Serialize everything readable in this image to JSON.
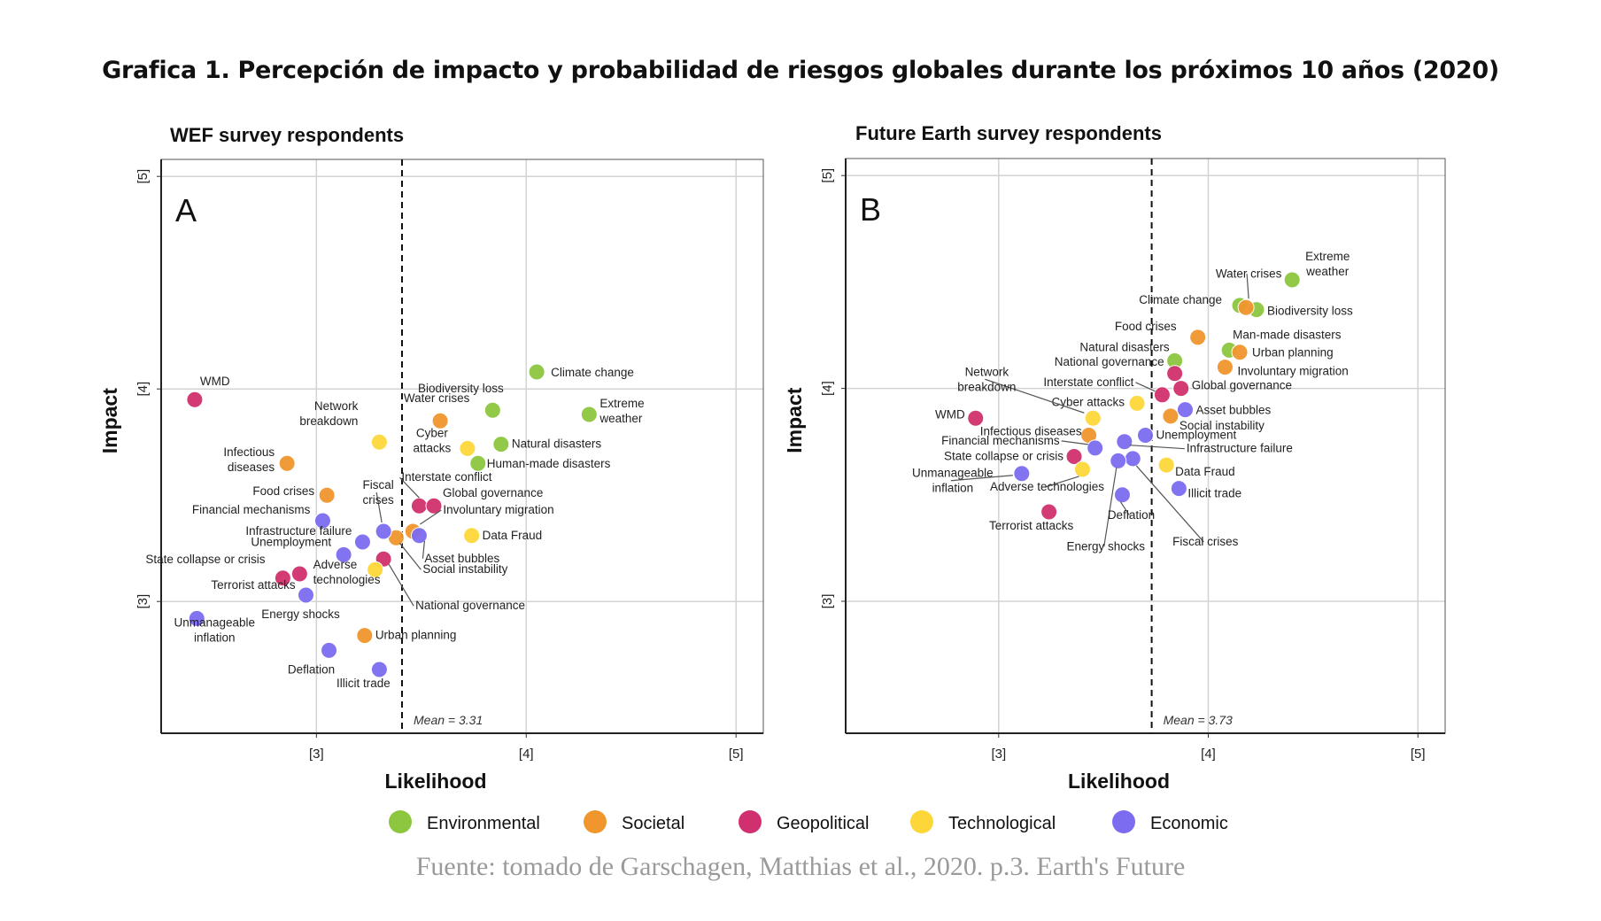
{
  "page": {
    "title": "Grafica 1. Percepción de impacto y probabilidad de riesgos globales durante los próximos 10 años  (2020)",
    "source": "Fuente: tomado de  Garschagen, Matthias et al., 2020. p.3. Earth's Future"
  },
  "categories": [
    {
      "key": "env",
      "name": "Environmental",
      "color": "#8dc63f"
    },
    {
      "key": "soc",
      "name": "Societal",
      "color": "#f0962d"
    },
    {
      "key": "geo",
      "name": "Geopolitical",
      "color": "#d0306d"
    },
    {
      "key": "tec",
      "name": "Technological",
      "color": "#fdd73a"
    },
    {
      "key": "eco",
      "name": "Economic",
      "color": "#7b6cf0"
    }
  ],
  "chart_data": [
    {
      "type": "scatter",
      "panel": "A",
      "title": "WEF survey respondents",
      "xlabel": "Likelihood",
      "ylabel": "Impact",
      "xlim": [
        2.26,
        5.13
      ],
      "ylim": [
        2.38,
        5.08
      ],
      "xticks": [
        "[3]",
        "[4]",
        "[5]"
      ],
      "yticks": [
        "[3]",
        "[4]",
        "[5]"
      ],
      "xtick_values": [
        3,
        4,
        5
      ],
      "ytick_values": [
        3,
        4,
        5
      ],
      "grid": true,
      "mean_label": "Mean = 3.31",
      "mean_x": 3.31,
      "legend_position": "bottom",
      "points": [
        {
          "name": "Climate change",
          "cat": "env",
          "x": 4.05,
          "y": 4.08
        },
        {
          "name": "Biodiversity loss",
          "cat": "env",
          "x": 3.84,
          "y": 3.9
        },
        {
          "name": "Extreme weather",
          "cat": "env",
          "x": 4.3,
          "y": 3.88
        },
        {
          "name": "Natural disasters",
          "cat": "env",
          "x": 3.88,
          "y": 3.74
        },
        {
          "name": "Human-made disasters",
          "cat": "env",
          "x": 3.77,
          "y": 3.65
        },
        {
          "name": "Water crises",
          "cat": "soc",
          "x": 3.59,
          "y": 3.85
        },
        {
          "name": "Infectious diseases",
          "cat": "soc",
          "x": 2.86,
          "y": 3.65
        },
        {
          "name": "Food crises",
          "cat": "soc",
          "x": 3.05,
          "y": 3.5
        },
        {
          "name": "Involuntary migration",
          "cat": "soc",
          "x": 3.46,
          "y": 3.33
        },
        {
          "name": "Social instability",
          "cat": "soc",
          "x": 3.38,
          "y": 3.3
        },
        {
          "name": "Urban planning",
          "cat": "soc",
          "x": 3.23,
          "y": 2.84
        },
        {
          "name": "WMD",
          "cat": "geo",
          "x": 2.42,
          "y": 3.95
        },
        {
          "name": "Interstate conflict",
          "cat": "geo",
          "x": 3.49,
          "y": 3.45
        },
        {
          "name": "Global governance",
          "cat": "geo",
          "x": 3.56,
          "y": 3.45
        },
        {
          "name": "National governance",
          "cat": "geo",
          "x": 3.32,
          "y": 3.2
        },
        {
          "name": "State collapse or crisis",
          "cat": "geo",
          "x": 2.84,
          "y": 3.11
        },
        {
          "name": "Terrorist attacks",
          "cat": "geo",
          "x": 2.92,
          "y": 3.13
        },
        {
          "name": "Network breakdown",
          "cat": "tec",
          "x": 3.3,
          "y": 3.75
        },
        {
          "name": "Cyber attacks",
          "cat": "tec",
          "x": 3.72,
          "y": 3.72
        },
        {
          "name": "Data Fraud",
          "cat": "tec",
          "x": 3.74,
          "y": 3.31
        },
        {
          "name": "Adverse technologies",
          "cat": "tec",
          "x": 3.28,
          "y": 3.15
        },
        {
          "name": "Asset bubbles",
          "cat": "eco",
          "x": 3.49,
          "y": 3.31
        },
        {
          "name": "Fiscal crises",
          "cat": "eco",
          "x": 3.32,
          "y": 3.33
        },
        {
          "name": "Financial mechanisms",
          "cat": "eco",
          "x": 3.03,
          "y": 3.38
        },
        {
          "name": "Infrastructure failure",
          "cat": "eco",
          "x": 3.22,
          "y": 3.28
        },
        {
          "name": "Unemployment",
          "cat": "eco",
          "x": 3.13,
          "y": 3.22
        },
        {
          "name": "Energy shocks",
          "cat": "eco",
          "x": 2.95,
          "y": 3.03
        },
        {
          "name": "Unmanageable inflation",
          "cat": "eco",
          "x": 2.43,
          "y": 2.92
        },
        {
          "name": "Deflation",
          "cat": "eco",
          "x": 3.06,
          "y": 2.77
        },
        {
          "name": "Illicit trade",
          "cat": "eco",
          "x": 3.3,
          "y": 2.68
        }
      ]
    },
    {
      "type": "scatter",
      "panel": "B",
      "title": "Future Earth survey respondents",
      "xlabel": "Likelihood",
      "ylabel": "Impact",
      "xlim": [
        2.27,
        5.13
      ],
      "ylim": [
        2.38,
        5.08
      ],
      "xticks": [
        "[3]",
        "[4]",
        "[5]"
      ],
      "yticks": [
        "[3]",
        "[4]",
        "[5]"
      ],
      "xtick_values": [
        3,
        4,
        5
      ],
      "ytick_values": [
        3,
        4,
        5
      ],
      "grid": true,
      "mean_label": "Mean = 3.73",
      "mean_x": 3.73,
      "legend_position": "bottom",
      "points": [
        {
          "name": "Extreme weather",
          "cat": "env",
          "x": 4.4,
          "y": 4.51
        },
        {
          "name": "Climate change",
          "cat": "env",
          "x": 4.15,
          "y": 4.39
        },
        {
          "name": "Biodiversity loss",
          "cat": "env",
          "x": 4.23,
          "y": 4.37
        },
        {
          "name": "Man-made disasters",
          "cat": "env",
          "x": 4.1,
          "y": 4.18
        },
        {
          "name": "Natural disasters",
          "cat": "env",
          "x": 3.84,
          "y": 4.13
        },
        {
          "name": "Water crises",
          "cat": "soc",
          "x": 4.18,
          "y": 4.38
        },
        {
          "name": "Food crises",
          "cat": "soc",
          "x": 3.95,
          "y": 4.24
        },
        {
          "name": "Urban planning",
          "cat": "soc",
          "x": 4.15,
          "y": 4.17
        },
        {
          "name": "Involuntary migration",
          "cat": "soc",
          "x": 4.08,
          "y": 4.1
        },
        {
          "name": "Social instability",
          "cat": "soc",
          "x": 3.82,
          "y": 3.87
        },
        {
          "name": "Infectious diseases",
          "cat": "soc",
          "x": 3.43,
          "y": 3.78
        },
        {
          "name": "National governance",
          "cat": "geo",
          "x": 3.84,
          "y": 4.07
        },
        {
          "name": "Global governance",
          "cat": "geo",
          "x": 3.87,
          "y": 4.0
        },
        {
          "name": "Interstate conflict",
          "cat": "geo",
          "x": 3.78,
          "y": 3.97
        },
        {
          "name": "WMD",
          "cat": "geo",
          "x": 2.89,
          "y": 3.86
        },
        {
          "name": "State collapse or crisis",
          "cat": "geo",
          "x": 3.36,
          "y": 3.68
        },
        {
          "name": "Terrorist attacks",
          "cat": "geo",
          "x": 3.24,
          "y": 3.42
        },
        {
          "name": "Cyber attacks",
          "cat": "tec",
          "x": 3.66,
          "y": 3.93
        },
        {
          "name": "Network breakdown",
          "cat": "tec",
          "x": 3.45,
          "y": 3.86
        },
        {
          "name": "Adverse technologies",
          "cat": "tec",
          "x": 3.4,
          "y": 3.62
        },
        {
          "name": "Data Fraud",
          "cat": "tec",
          "x": 3.8,
          "y": 3.64
        },
        {
          "name": "Asset bubbles",
          "cat": "eco",
          "x": 3.89,
          "y": 3.9
        },
        {
          "name": "Unemployment",
          "cat": "eco",
          "x": 3.7,
          "y": 3.78
        },
        {
          "name": "Infrastructure failure",
          "cat": "eco",
          "x": 3.6,
          "y": 3.75
        },
        {
          "name": "Financial mechanisms",
          "cat": "eco",
          "x": 3.46,
          "y": 3.72
        },
        {
          "name": "Fiscal crises",
          "cat": "eco",
          "x": 3.64,
          "y": 3.67
        },
        {
          "name": "Energy shocks",
          "cat": "eco",
          "x": 3.57,
          "y": 3.66
        },
        {
          "name": "Unmanageable inflation",
          "cat": "eco",
          "x": 3.11,
          "y": 3.6
        },
        {
          "name": "Illicit trade",
          "cat": "eco",
          "x": 3.86,
          "y": 3.53
        },
        {
          "name": "Deflation",
          "cat": "eco",
          "x": 3.59,
          "y": 3.5
        }
      ]
    }
  ]
}
